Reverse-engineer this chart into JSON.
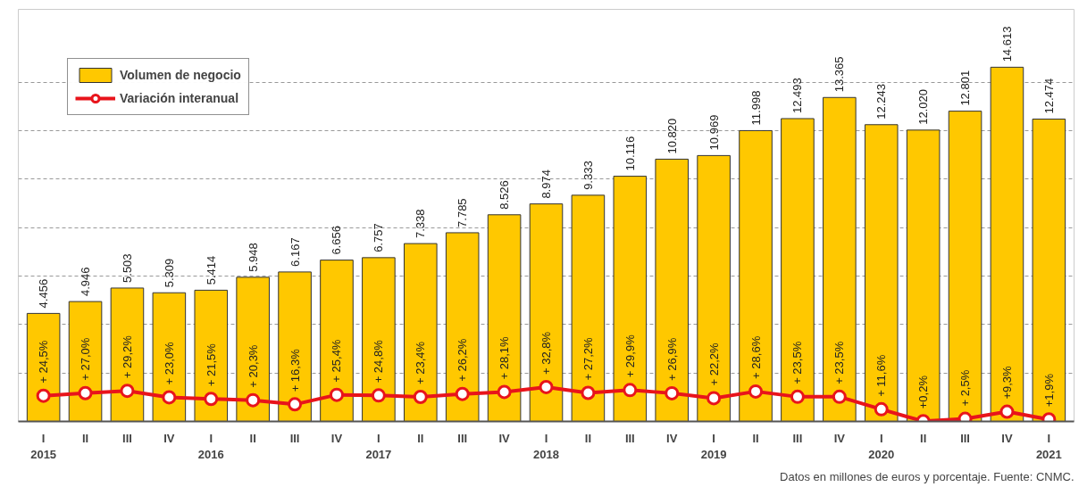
{
  "chart_data": {
    "type": "bar",
    "categories": [
      "I\n2015",
      "II",
      "III",
      "IV",
      "I\n2016",
      "II",
      "III",
      "IV",
      "I\n2017",
      "II",
      "III",
      "IV",
      "I\n2018",
      "II",
      "III",
      "IV",
      "I\n2019",
      "II",
      "III",
      "IV",
      "I\n2020",
      "II",
      "III",
      "IV",
      "I\n2021"
    ],
    "series": [
      {
        "name": "Volumen de negocio",
        "color": "#ffc800",
        "values": [
          4456,
          4946,
          5503,
          5309,
          5414,
          5948,
          6167,
          6656,
          6757,
          7338,
          7785,
          8526,
          8974,
          9333,
          10116,
          10820,
          10969,
          11998,
          12493,
          13365,
          12243,
          12020,
          12801,
          14613,
          12474
        ],
        "value_labels": [
          "4.456",
          "4.946",
          "5.503",
          "5.309",
          "5.414",
          "5.948",
          "6.167",
          "6.656",
          "6.757",
          "7.338",
          "7.785",
          "8.526",
          "8.974",
          "9.333",
          "10.116",
          "10.820",
          "10.969",
          "11.998",
          "12.493",
          "13.365",
          "12.243",
          "12.020",
          "12.801",
          "14.613",
          "12.474"
        ]
      },
      {
        "name": "Variación interanual",
        "type": "line",
        "axis": "y2",
        "color": "#e8141b",
        "marker": "circle",
        "values": [
          24.5,
          27.0,
          29.2,
          23.0,
          21.5,
          20.3,
          16.3,
          25.4,
          24.8,
          23.4,
          26.2,
          28.1,
          32.8,
          27.2,
          29.9,
          26.9,
          22.2,
          28.6,
          23.5,
          23.5,
          11.6,
          0.2,
          2.5,
          9.3,
          1.9
        ],
        "value_labels": [
          "+ 24,5%",
          "+ 27,0%",
          "+ 29,2%",
          "+ 23,0%",
          "+ 21,5%",
          "+ 20,3%",
          "+ 16,3%",
          "+ 25,4%",
          "+ 24,8%",
          "+ 23,4%",
          "+ 26,2%",
          "+ 28,1%",
          "+ 32,8%",
          "+ 27,2%",
          "+ 29,9%",
          "+ 26,9%",
          "+ 22,2%",
          "+ 28,6%",
          "+ 23,5%",
          "+ 23,5%",
          "+ 11,6%",
          "+0,2%",
          "+ 2,5%",
          "+9,3%",
          "+1,9%"
        ]
      }
    ],
    "ylim": [
      0,
      17000
    ],
    "yticks": [
      {
        "value": 2000,
        "label": null
      },
      {
        "value": 4000,
        "label": null
      },
      {
        "value": 6000,
        "label": null
      },
      {
        "value": 8000,
        "label": null
      },
      {
        "value": 10000,
        "label": null
      },
      {
        "value": 12000,
        "label": null
      },
      {
        "value": 14000,
        "label": null
      }
    ],
    "y2lim": [
      0,
      393
    ],
    "grid": "y",
    "tick_labels": "x",
    "legend": "top left",
    "annotations": [
      "Datos en millones de euros y porcentaje. Fuente: CNMC."
    ]
  }
}
